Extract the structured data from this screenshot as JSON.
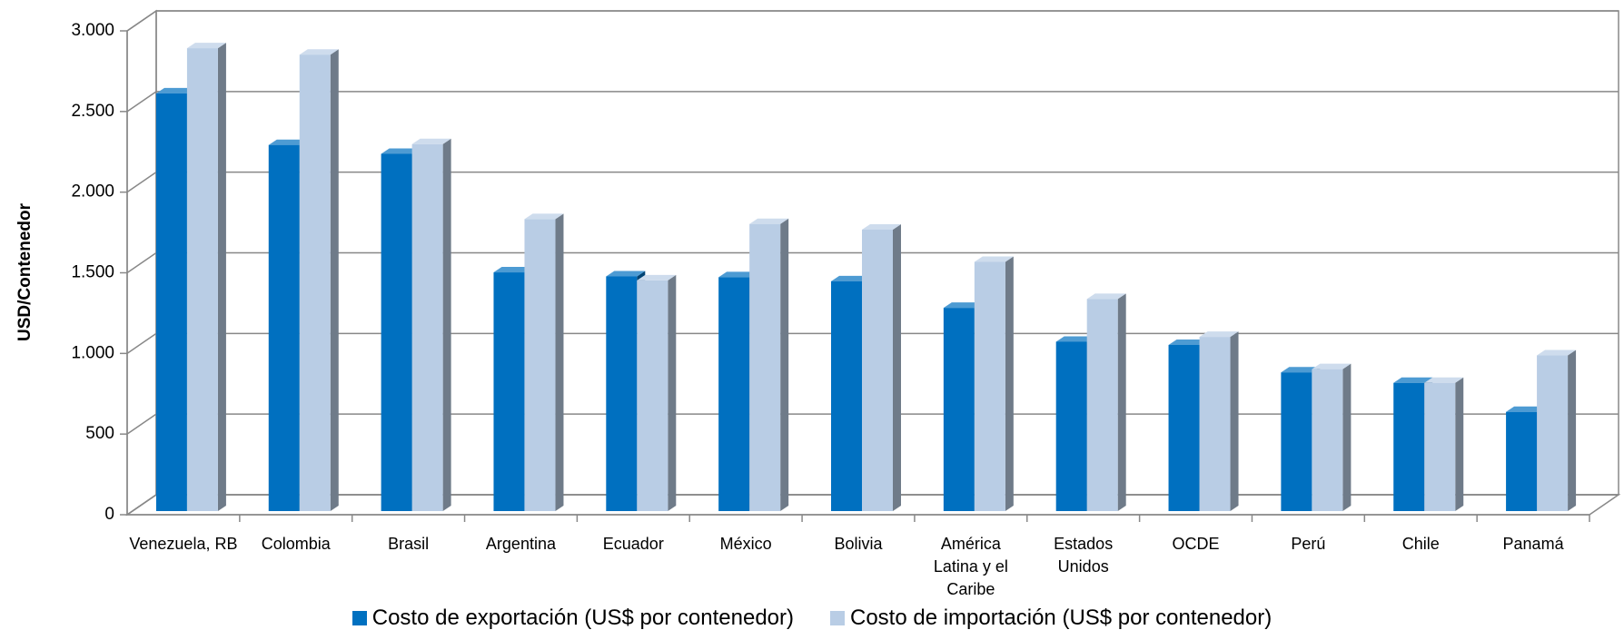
{
  "chart_data": {
    "type": "bar3d",
    "ylabel": "USD/Contenedor",
    "categories": [
      "Venezuela, RB",
      "Colombia",
      "Brasil",
      "Argentina",
      "Ecuador",
      "México",
      "Bolivia",
      "América Latina y el Caribe",
      "Estados Unidos",
      "OCDE",
      "Perú",
      "Chile",
      "Panamá"
    ],
    "series": [
      {
        "name": "Costo de exportación (US$ por contenedor)",
        "color": "#0070C0",
        "values": [
          2590,
          2270,
          2215,
          1480,
          1455,
          1450,
          1425,
          1260,
          1050,
          1030,
          860,
          795,
          615
        ]
      },
      {
        "name": "Costo de importación (US$ por contenedor)",
        "color": "#B9CDE5",
        "values": [
          2870,
          2830,
          2275,
          1810,
          1430,
          1780,
          1745,
          1545,
          1315,
          1080,
          880,
          795,
          965
        ]
      }
    ],
    "ylim": [
      0,
      3000
    ],
    "yticks": [
      0,
      500,
      {
        "value": 1000,
        "label": "1.000"
      },
      {
        "value": 1500,
        "label": "1.500"
      },
      {
        "value": 2000,
        "label": "2.000"
      },
      {
        "value": 2500,
        "label": "2.500"
      },
      {
        "value": 3000,
        "label": "3.000"
      }
    ],
    "grid": true
  }
}
